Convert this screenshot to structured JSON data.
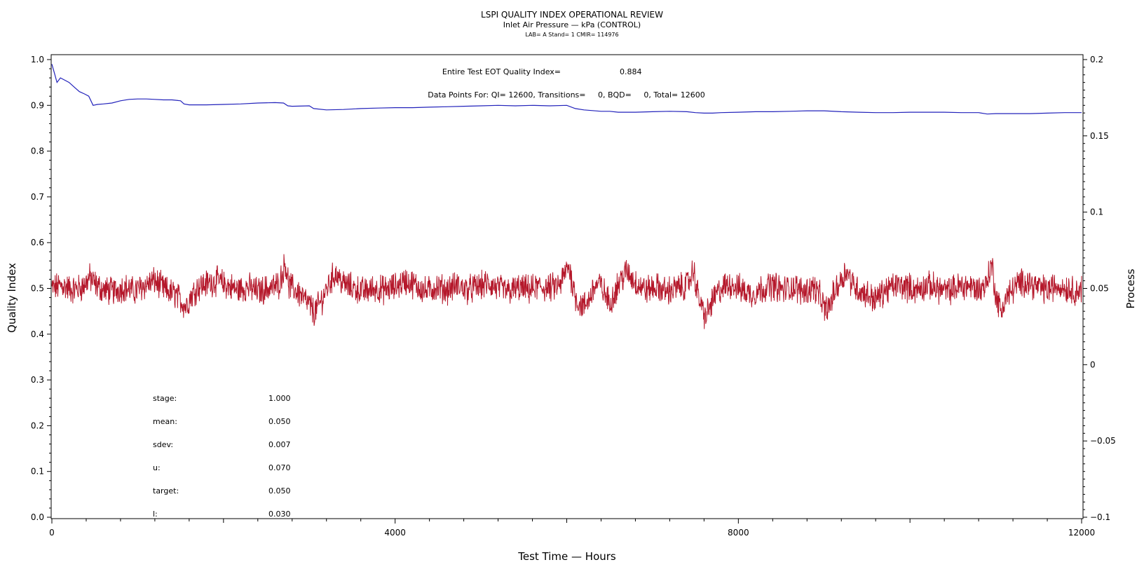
{
  "chart_data": {
    "type": "line",
    "title": "LSPI QUALITY INDEX OPERATIONAL REVIEW",
    "subtitle": "Inlet Air Pressure — kPa (CONTROL)",
    "info_line": "LAB= A Stand= 1 CMIR= 114976",
    "xlabel": "Test Time — Hours",
    "ylabel": "Quality Index",
    "y2label": "Process",
    "xlim": [
      0,
      12000
    ],
    "ylim": [
      0,
      1.0
    ],
    "y2lim": [
      -0.1,
      0.2
    ],
    "x_ticks": [
      "0",
      "4000",
      "8000",
      "12000"
    ],
    "y_ticks": [
      "0.0",
      "0.1",
      "0.2",
      "0.3",
      "0.4",
      "0.5",
      "0.6",
      "0.7",
      "0.8",
      "0.9",
      "1.0"
    ],
    "y2_ticks": [
      "−0.1",
      "−0.05",
      "0",
      "0.05",
      "0.1",
      "0.15",
      "0.2"
    ],
    "annotations": {
      "qi_label": "Entire Test EOT Quality Index=",
      "qi_value": "0.884",
      "points_label": "Data Points For: QI= 12600, Transitions=     0, BQD=     0, Total= 12600"
    },
    "stats": [
      {
        "label": "stage:",
        "value": "1.000"
      },
      {
        "label": "mean:",
        "value": "0.050"
      },
      {
        "label": "sdev:",
        "value": "0.007"
      },
      {
        "label": "u:",
        "value": "0.070"
      },
      {
        "label": "target:",
        "value": "0.050"
      },
      {
        "label": "l:",
        "value": "0.030"
      }
    ],
    "series": [
      {
        "color": "#2222bb",
        "axis": "left",
        "x": [
          0,
          30,
          60,
          100,
          150,
          200,
          260,
          320,
          380,
          430,
          480,
          530,
          600,
          700,
          800,
          900,
          1000,
          1100,
          1200,
          1300,
          1400,
          1500,
          1540,
          1600,
          1800,
          2000,
          2200,
          2400,
          2600,
          2700,
          2750,
          2800,
          3000,
          3050,
          3200,
          3400,
          3600,
          3800,
          4000,
          4200,
          4400,
          4600,
          4800,
          5000,
          5200,
          5400,
          5600,
          5800,
          6000,
          6100,
          6200,
          6400,
          6500,
          6600,
          6800,
          7000,
          7200,
          7400,
          7500,
          7600,
          7700,
          7800,
          8000,
          8200,
          8400,
          8600,
          8800,
          9000,
          9200,
          9400,
          9600,
          9800,
          10000,
          10200,
          10400,
          10600,
          10800,
          10900,
          11000,
          11200,
          11400,
          11600,
          11800,
          12000
        ],
        "y": [
          0.99,
          0.97,
          0.95,
          0.96,
          0.955,
          0.95,
          0.94,
          0.93,
          0.925,
          0.92,
          0.9,
          0.902,
          0.903,
          0.905,
          0.91,
          0.913,
          0.914,
          0.914,
          0.913,
          0.912,
          0.912,
          0.91,
          0.903,
          0.901,
          0.901,
          0.902,
          0.903,
          0.905,
          0.906,
          0.905,
          0.899,
          0.898,
          0.899,
          0.893,
          0.89,
          0.891,
          0.893,
          0.894,
          0.895,
          0.895,
          0.896,
          0.897,
          0.898,
          0.899,
          0.9,
          0.899,
          0.9,
          0.899,
          0.9,
          0.893,
          0.89,
          0.887,
          0.887,
          0.885,
          0.885,
          0.886,
          0.887,
          0.886,
          0.884,
          0.883,
          0.883,
          0.884,
          0.885,
          0.886,
          0.886,
          0.887,
          0.888,
          0.888,
          0.886,
          0.885,
          0.884,
          0.884,
          0.885,
          0.885,
          0.885,
          0.884,
          0.884,
          0.881,
          0.882,
          0.882,
          0.882,
          0.883,
          0.884,
          0.884
        ]
      },
      {
        "color": "#b5182b",
        "axis": "right",
        "x": [
          0,
          120,
          240,
          360,
          440,
          520,
          600,
          720,
          840,
          960,
          1080,
          1200,
          1320,
          1440,
          1520,
          1560,
          1620,
          1700,
          1800,
          1920,
          2040,
          2160,
          2280,
          2400,
          2520,
          2640,
          2700,
          2720,
          2760,
          2880,
          3000,
          3060,
          3140,
          3240,
          3300,
          3400,
          3520,
          3640,
          3760,
          3880,
          4000,
          4120,
          4240,
          4360,
          4480,
          4600,
          4720,
          4840,
          4960,
          5080,
          5200,
          5320,
          5440,
          5560,
          5680,
          5800,
          5920,
          5980,
          6020,
          6060,
          6100,
          6140,
          6200,
          6260,
          6320,
          6380,
          6440,
          6500,
          6560,
          6620,
          6700,
          6800,
          6920,
          7040,
          7160,
          7280,
          7400,
          7480,
          7520,
          7580,
          7620,
          7700,
          7800,
          7920,
          8040,
          8160,
          8280,
          8400,
          8520,
          8640,
          8760,
          8880,
          8960,
          9000,
          9060,
          9120,
          9200,
          9260,
          9320,
          9400,
          9500,
          9600,
          9720,
          9840,
          9960,
          10080,
          10200,
          10320,
          10440,
          10560,
          10680,
          10800,
          10880,
          10920,
          10960,
          11000,
          11060,
          11120,
          11240,
          11360,
          11480,
          11600,
          11720,
          11840,
          11960,
          12000
        ],
        "y": [
          0.05,
          0.052,
          0.049,
          0.051,
          0.057,
          0.052,
          0.049,
          0.048,
          0.051,
          0.048,
          0.052,
          0.055,
          0.049,
          0.046,
          0.041,
          0.038,
          0.045,
          0.051,
          0.053,
          0.055,
          0.052,
          0.049,
          0.051,
          0.048,
          0.05,
          0.052,
          0.062,
          0.068,
          0.052,
          0.047,
          0.039,
          0.034,
          0.042,
          0.054,
          0.06,
          0.053,
          0.05,
          0.048,
          0.05,
          0.049,
          0.051,
          0.055,
          0.052,
          0.048,
          0.051,
          0.049,
          0.052,
          0.049,
          0.051,
          0.053,
          0.05,
          0.048,
          0.05,
          0.049,
          0.051,
          0.05,
          0.052,
          0.06,
          0.065,
          0.055,
          0.045,
          0.04,
          0.038,
          0.043,
          0.051,
          0.053,
          0.047,
          0.04,
          0.048,
          0.055,
          0.061,
          0.054,
          0.049,
          0.051,
          0.048,
          0.05,
          0.052,
          0.062,
          0.048,
          0.036,
          0.031,
          0.042,
          0.05,
          0.053,
          0.049,
          0.046,
          0.05,
          0.052,
          0.049,
          0.051,
          0.048,
          0.051,
          0.044,
          0.036,
          0.038,
          0.048,
          0.056,
          0.062,
          0.054,
          0.049,
          0.046,
          0.043,
          0.049,
          0.052,
          0.051,
          0.049,
          0.052,
          0.05,
          0.048,
          0.051,
          0.052,
          0.049,
          0.052,
          0.06,
          0.065,
          0.045,
          0.035,
          0.044,
          0.052,
          0.055,
          0.051,
          0.049,
          0.052,
          0.05,
          0.048,
          0.05
        ]
      }
    ],
    "legend": "none",
    "grid": false
  }
}
